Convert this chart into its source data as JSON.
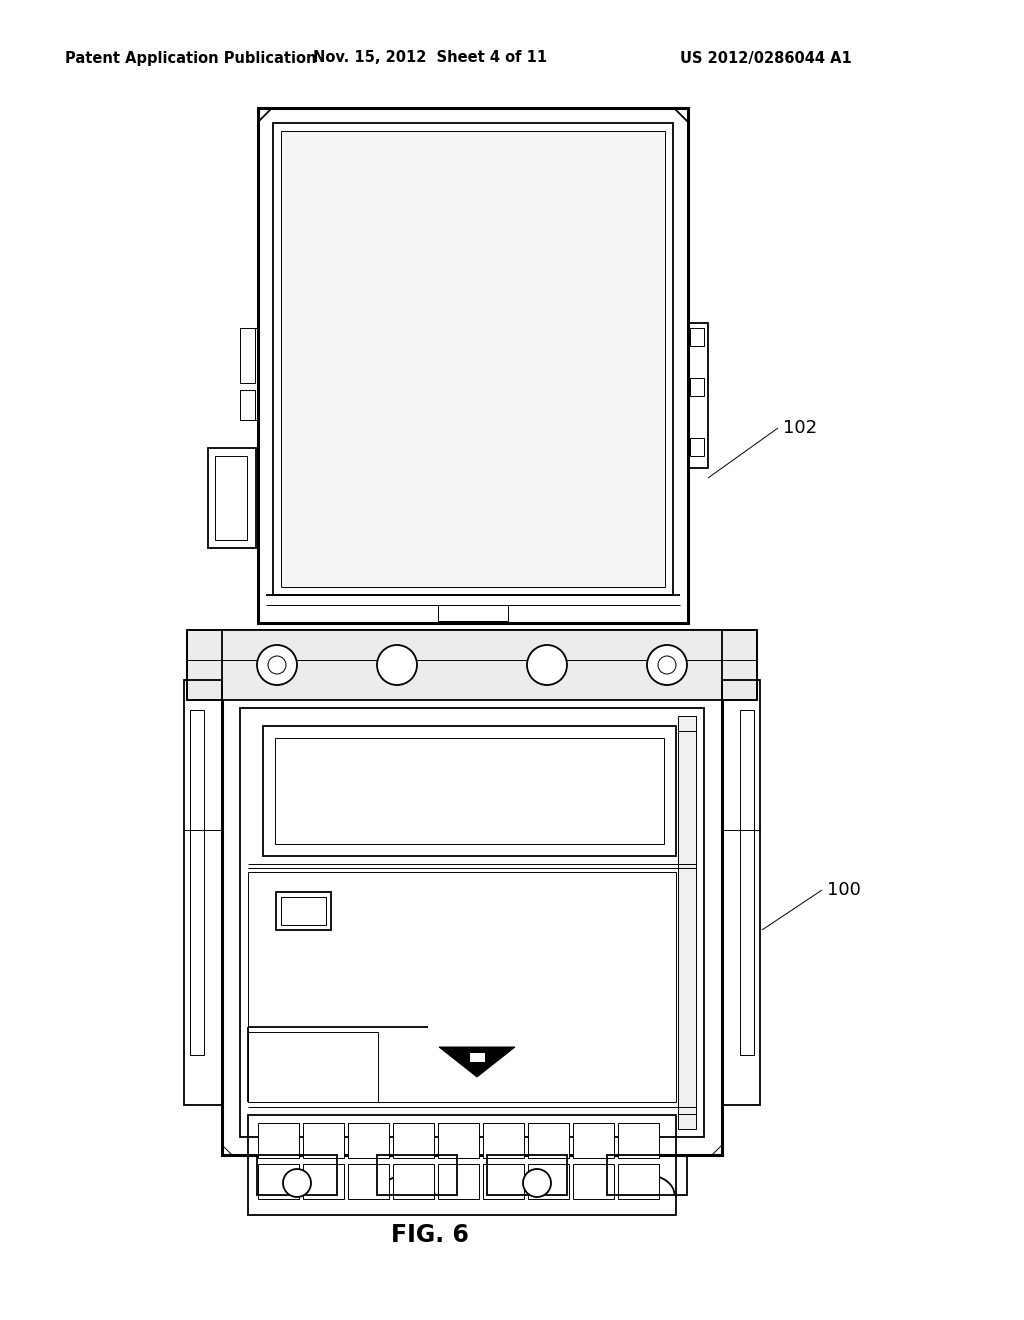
{
  "bg_color": "#ffffff",
  "line_color": "#000000",
  "header_left": "Patent Application Publication",
  "header_mid": "Nov. 15, 2012  Sheet 4 of 11",
  "header_right": "US 2012/0286044 A1",
  "fig_label": "FIG. 6",
  "label_102": "102",
  "label_100": "100",
  "header_fontsize": 10.5,
  "label_fontsize": 13,
  "fig_label_fontsize": 17
}
